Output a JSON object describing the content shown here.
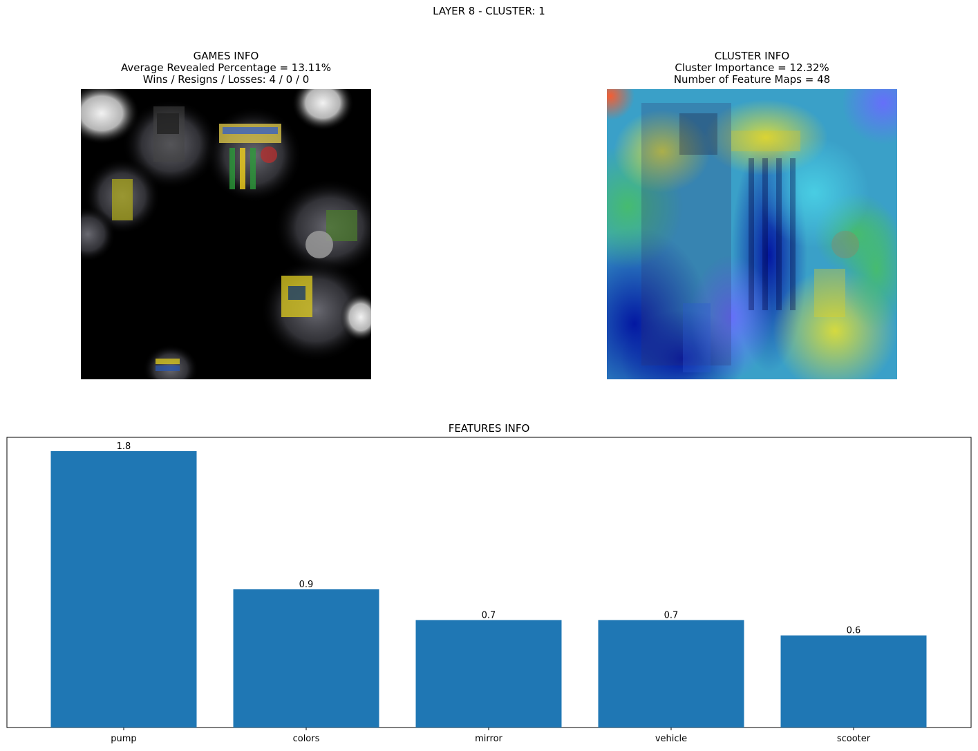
{
  "suptitle": "LAYER 8 - CLUSTER: 1",
  "games_info": {
    "title": "GAMES INFO",
    "line1": "Average Revealed Percentage = 13.11%",
    "line2": "Wins / Resigns / Losses: 4 / 0 / 0"
  },
  "cluster_info": {
    "title": "CLUSTER INFO",
    "line1": "Cluster Importance = 12.32%",
    "line2": "Number of Feature Maps = 48"
  },
  "chart_data": {
    "type": "bar",
    "title": "FEATURES INFO",
    "categories": [
      "pump",
      "colors",
      "mirror",
      "vehicle",
      "scooter"
    ],
    "values": [
      1.8,
      0.9,
      0.7,
      0.7,
      0.6
    ],
    "value_labels": [
      "1.8",
      "0.9",
      "0.7",
      "0.7",
      "0.6"
    ],
    "ylim": [
      0,
      1.89
    ],
    "xlabel": "",
    "ylabel": "",
    "yticks_visible": false,
    "grid": false,
    "bar_color": "#1f77b4"
  }
}
